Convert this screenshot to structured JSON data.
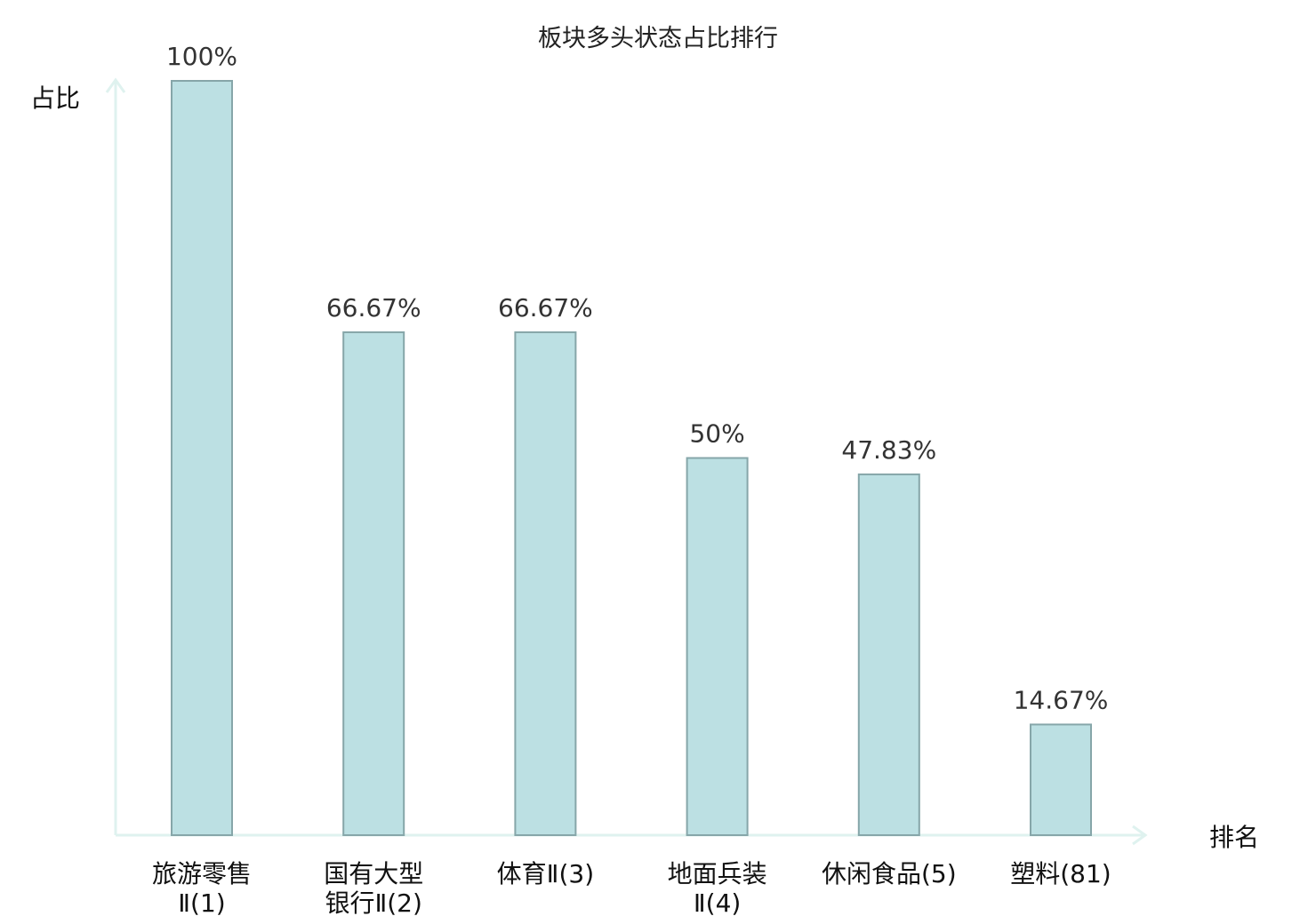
{
  "chart_data": {
    "type": "bar",
    "title": "板块多头状态占比排行",
    "ylabel": "占比",
    "xlabel": "排名",
    "ylim": [
      0,
      100
    ],
    "grid": false,
    "categories": [
      {
        "lines": [
          "旅游零售",
          "Ⅱ(1)"
        ],
        "highlight": false
      },
      {
        "lines": [
          "国有大型",
          "银行Ⅱ(2)"
        ],
        "highlight": false
      },
      {
        "lines": [
          "体育Ⅱ(3)"
        ],
        "highlight": false
      },
      {
        "lines": [
          "地面兵装",
          "Ⅱ(4)"
        ],
        "highlight": false
      },
      {
        "lines": [
          "休闲食品(5)"
        ],
        "highlight": false
      },
      {
        "lines": [
          "塑料(81)"
        ],
        "highlight": true
      }
    ],
    "values": [
      100,
      66.67,
      66.67,
      50,
      47.83,
      14.67
    ],
    "value_labels": [
      "100%",
      "66.67%",
      "66.67%",
      "50%",
      "47.83%",
      "14.67%"
    ],
    "colors": {
      "bar_fill": "#bce0e3",
      "bar_stroke": "#86a6a9",
      "axis": "#dff2ef",
      "highlight_text": "#e0191b"
    }
  }
}
